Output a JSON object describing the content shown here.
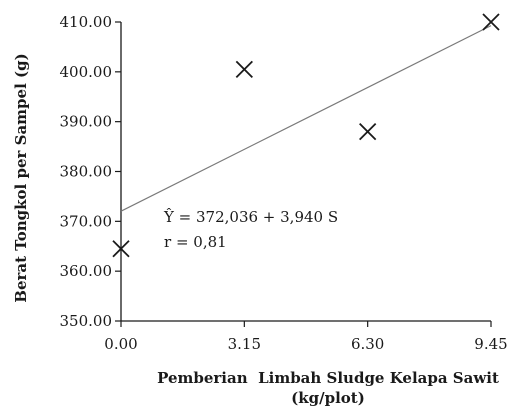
{
  "chart_data": {
    "type": "scatter",
    "x": [
      0.0,
      3.15,
      6.3,
      9.45
    ],
    "y": [
      364.5,
      400.5,
      388.0,
      410.0
    ],
    "x_ticks": [
      "0.00",
      "3.15",
      "6.30",
      "9.45"
    ],
    "y_ticks": [
      "350.00",
      "360.00",
      "370.00",
      "380.00",
      "390.00",
      "400.00",
      "410.00"
    ],
    "xlim": [
      0,
      9.45
    ],
    "ylim": [
      350,
      410
    ],
    "xlabel_line1": "Pemberian  Limbah Sludge Kelapa Sawit",
    "xlabel_line2": "(kg/plot)",
    "ylabel": "Berat Tongkol per Sampel (g)",
    "regression": {
      "intercept": 372.036,
      "slope": 3.94
    },
    "annotation_equation": "Ŷ = 372,036 + 3,940 S",
    "annotation_r": "r = 0,81",
    "marker": "x",
    "grid": false,
    "colors": {
      "axis": "#1a1a1a",
      "marker": "#1a1a1a",
      "trendline": "#7a7a7a"
    }
  }
}
